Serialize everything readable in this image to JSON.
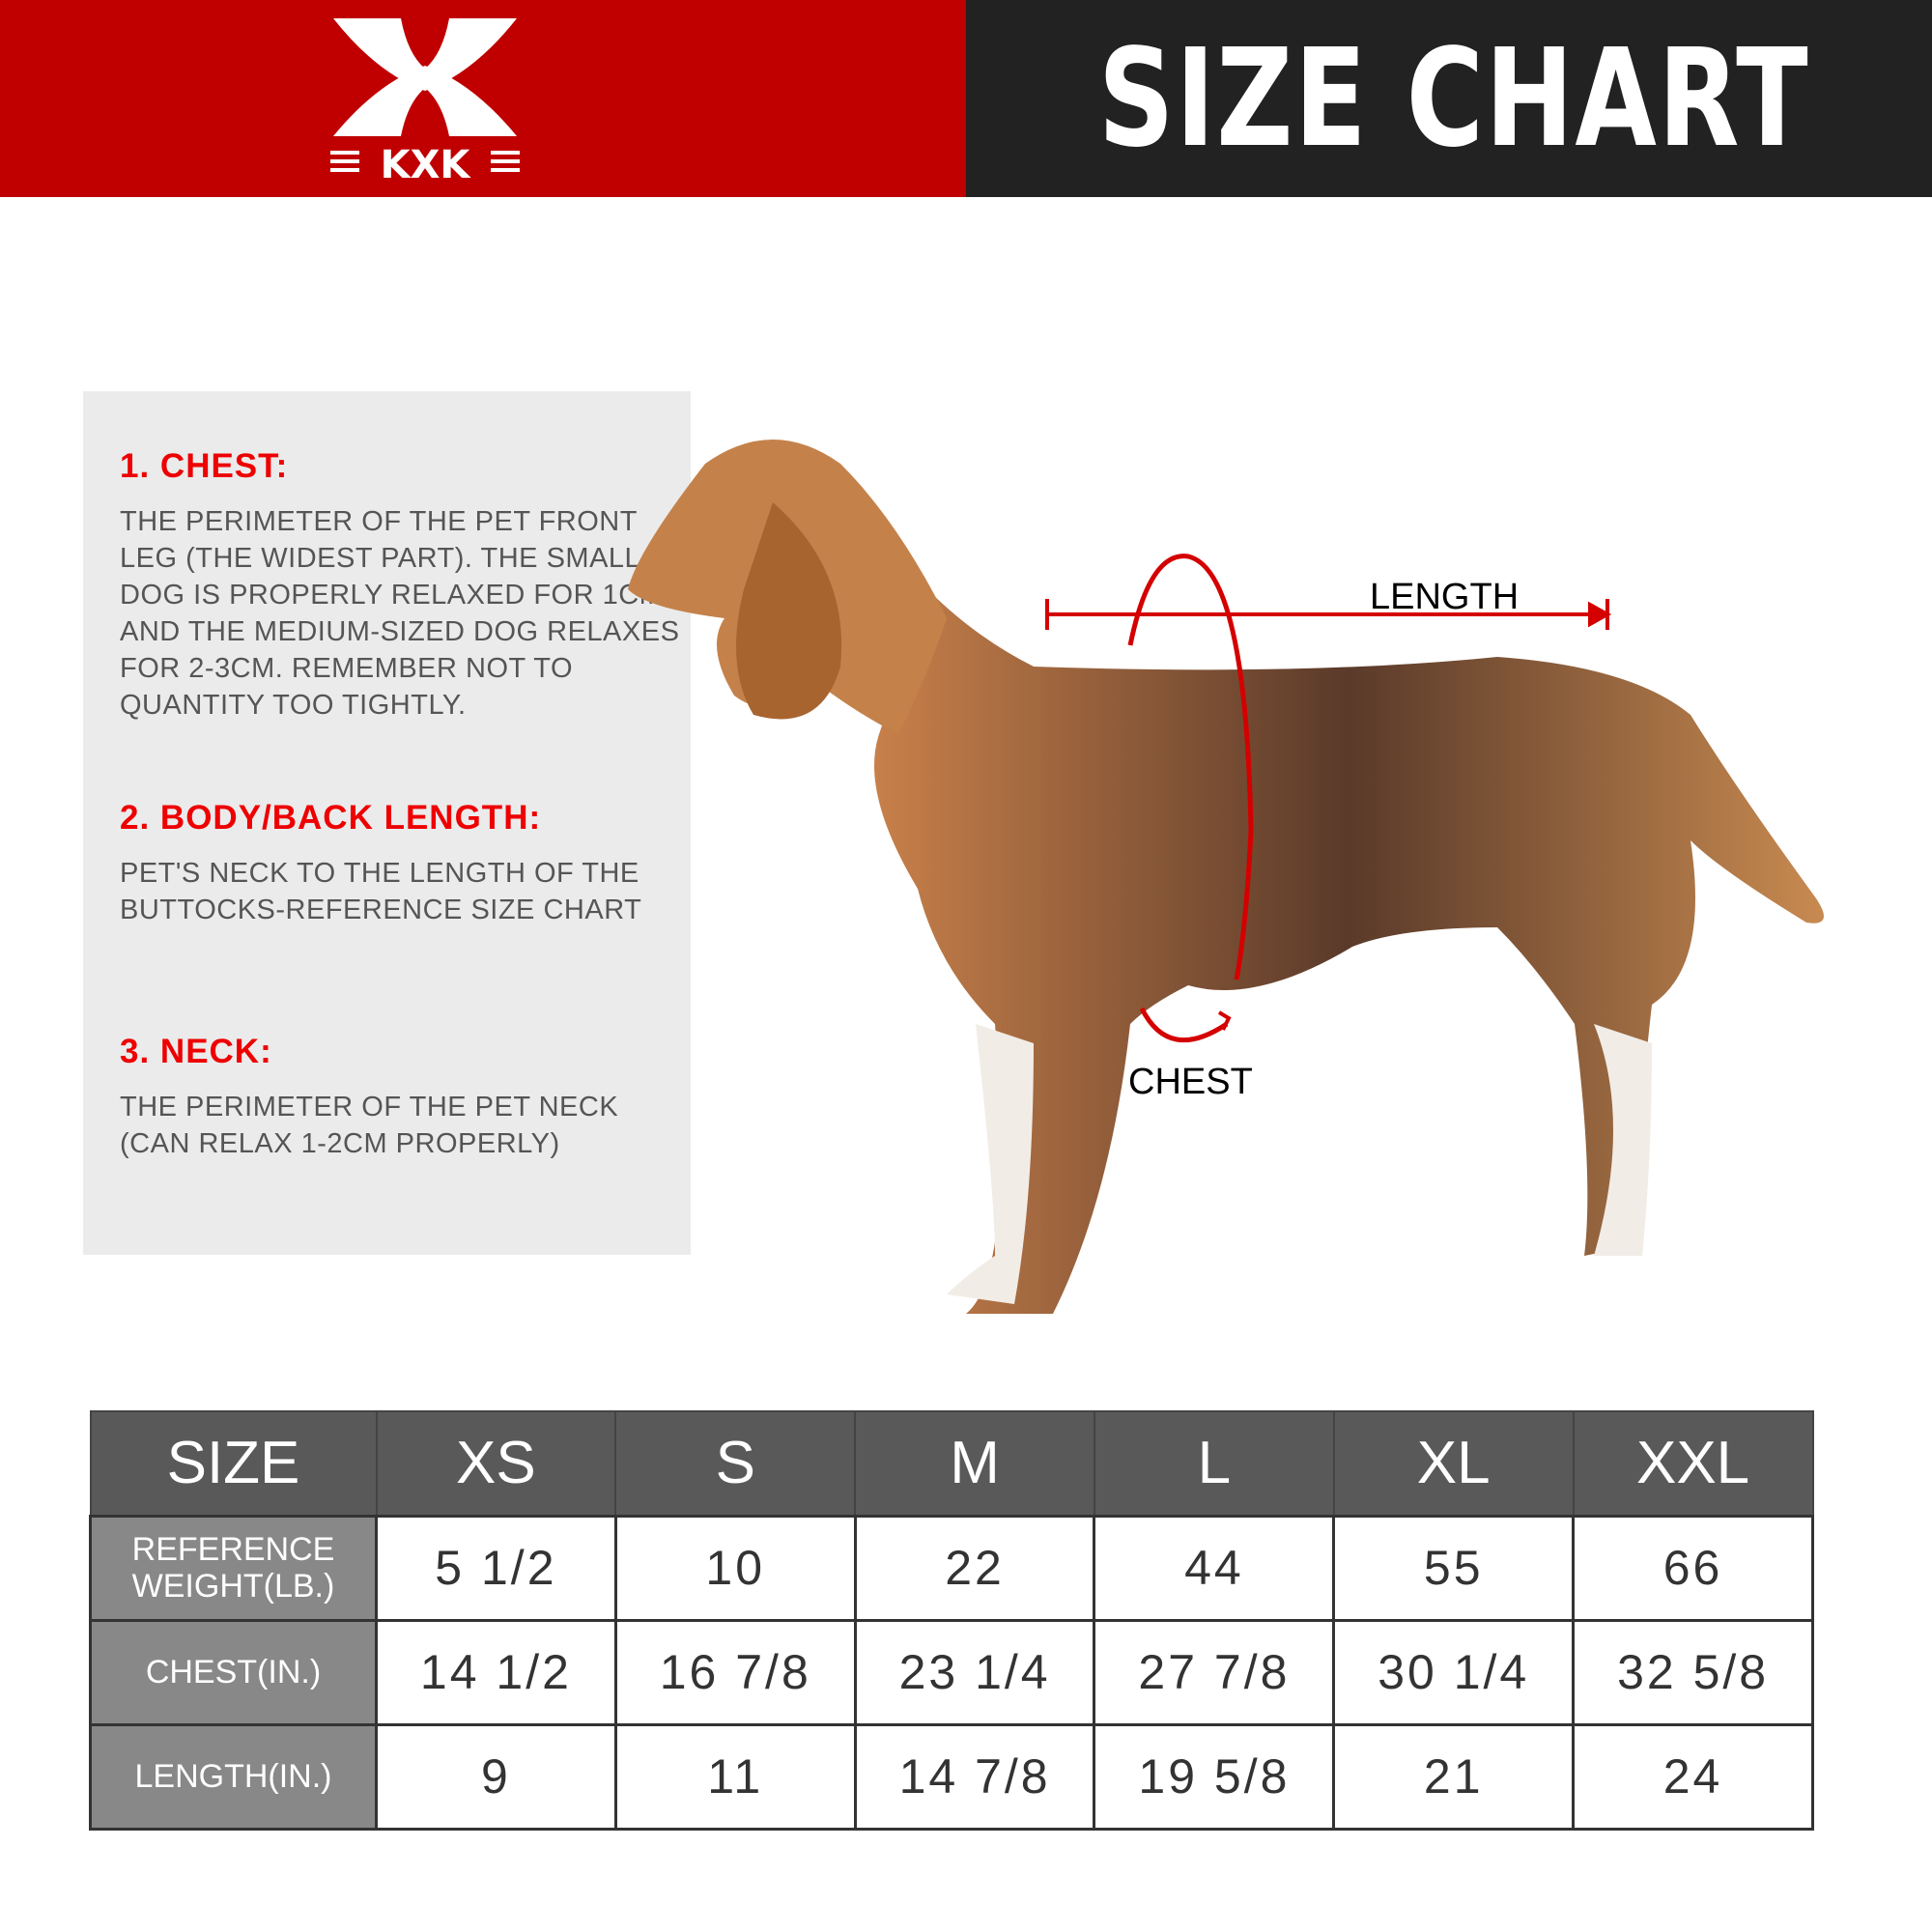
{
  "header": {
    "brand": "KXK",
    "title": "SIZE CHART",
    "colors": {
      "brand_red": "#c00000",
      "dark": "#222222"
    }
  },
  "info": [
    {
      "heading": "1. CHEST:",
      "text": "THE PERIMETER OF THE PET FRONT LEG (THE WIDEST PART). THE SMALL DOG IS PROPERLY RELAXED FOR 1CM, AND THE MEDIUM-SIZED DOG RELAXES FOR 2-3CM. REMEMBER NOT TO QUANTITY TOO TIGHTLY."
    },
    {
      "heading": "2. BODY/BACK LENGTH:",
      "text": "PET'S NECK TO THE LENGTH OF THE BUTTOCKS-REFERENCE SIZE CHART"
    },
    {
      "heading": "3. NECK:",
      "text": "THE PERIMETER OF THE PET NECK (CAN RELAX 1-2CM PROPERLY)"
    }
  ],
  "diagram": {
    "length_label": "LENGTH",
    "chest_label": "CHEST"
  },
  "table": {
    "headers": [
      "SIZE",
      "XS",
      "S",
      "M",
      "L",
      "XL",
      "XXL"
    ],
    "rows": [
      {
        "label": "REFERENCE WEIGHT(LB.)",
        "values": [
          "5 1/2",
          "10",
          "22",
          "44",
          "55",
          "66"
        ]
      },
      {
        "label": "CHEST(IN.)",
        "values": [
          "14 1/2",
          "16 7/8",
          "23 1/4",
          "27 7/8",
          "30 1/4",
          "32 5/8"
        ]
      },
      {
        "label": "LENGTH(IN.)",
        "values": [
          "9",
          "11",
          "14 7/8",
          "19 5/8",
          "21",
          "24"
        ]
      }
    ]
  }
}
